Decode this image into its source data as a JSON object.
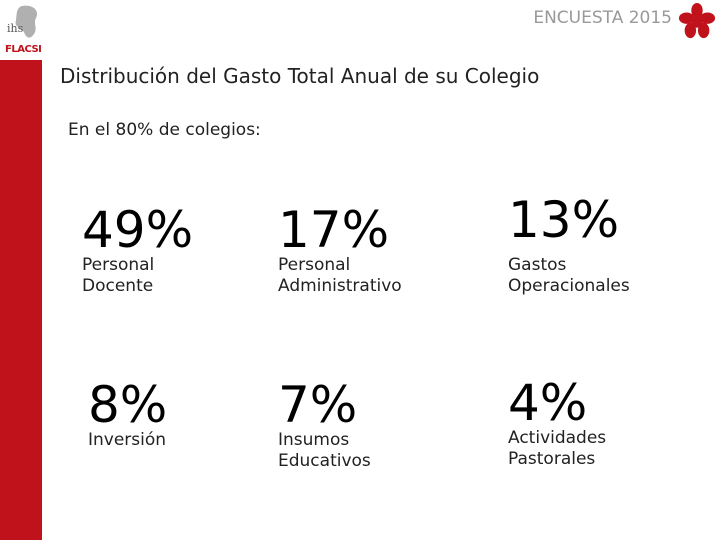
{
  "header": {
    "survey_label": "ENCUESTA 2015"
  },
  "logo": {
    "line1": "ihs",
    "line2": "FLACSI"
  },
  "title": "Distribución del Gasto Total Anual de su Colegio",
  "subtitle": "En el 80% de colegios:",
  "stats": [
    {
      "value": "49%",
      "label": "Personal\nDocente"
    },
    {
      "value": "17%",
      "label": "Personal\nAdministrativo"
    },
    {
      "value": "13%",
      "label": "Gastos\nOperacionales"
    },
    {
      "value": "8%",
      "label": "Inversión"
    },
    {
      "value": "7%",
      "label": "Insumos\nEducativos"
    },
    {
      "value": "4%",
      "label": "Actividades\nPastorales"
    }
  ],
  "colors": {
    "accent": "#c0121b",
    "header_text": "#999999"
  }
}
